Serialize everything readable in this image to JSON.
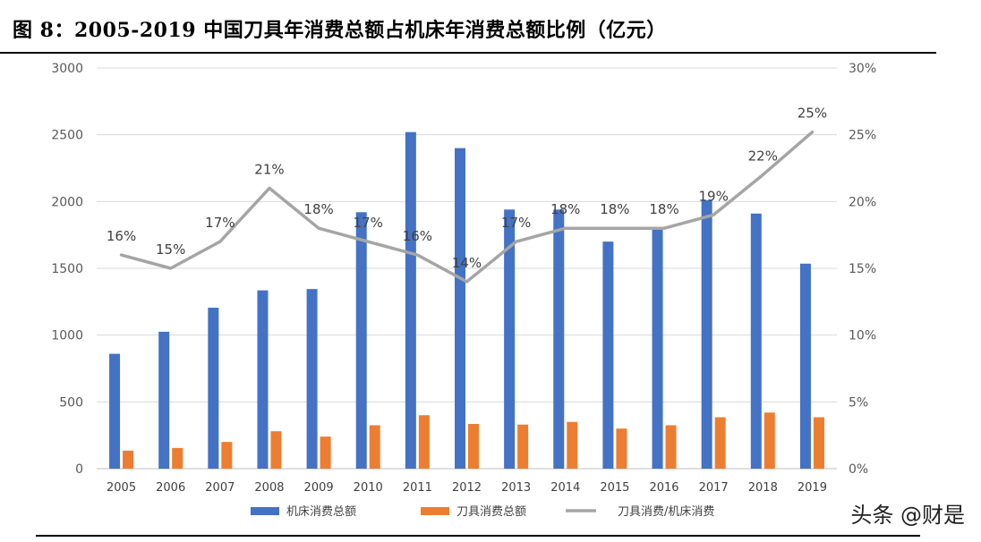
{
  "title": "图  8：2005-2019 中国刀具年消费总额占机床年消费总额比例（亿元）",
  "watermark": "头条 @财是",
  "chart_data": {
    "type": "bar",
    "categories": [
      "2005",
      "2006",
      "2007",
      "2008",
      "2009",
      "2010",
      "2011",
      "2012",
      "2013",
      "2014",
      "2015",
      "2016",
      "2017",
      "2018",
      "2019"
    ],
    "y_left_ticks": [
      "0",
      "500",
      "1000",
      "1500",
      "2000",
      "2500",
      "3000"
    ],
    "y_right_ticks": [
      "0%",
      "5%",
      "10%",
      "15%",
      "20%",
      "25%",
      "30%"
    ],
    "ylim_left": [
      0,
      3000
    ],
    "ylim_right": [
      0,
      30
    ],
    "series": [
      {
        "name": "机床消费总额",
        "type": "bar",
        "axis": "left",
        "color": "#4472C4",
        "values": [
          860,
          1025,
          1205,
          1335,
          1345,
          1920,
          2520,
          2400,
          1940,
          1940,
          1700,
          1800,
          2010,
          1910,
          1535
        ]
      },
      {
        "name": "刀具消费总额",
        "type": "bar",
        "axis": "left",
        "color": "#ED7D31",
        "values": [
          135,
          155,
          200,
          280,
          240,
          325,
          400,
          335,
          330,
          350,
          300,
          325,
          385,
          420,
          385
        ]
      },
      {
        "name": "刀具消费/机床消费",
        "type": "line",
        "axis": "right",
        "color": "#A5A5A5",
        "values": [
          16,
          15,
          17,
          21,
          18,
          17,
          16,
          14,
          17,
          18,
          18,
          18,
          19,
          22,
          25.2
        ],
        "labels": [
          "16%",
          "15%",
          "17%",
          "21%",
          "18%",
          "17%",
          "16%",
          "14%",
          "17%",
          "18%",
          "18%",
          "18%",
          "19%",
          "22%",
          "25%"
        ]
      }
    ],
    "grid": true,
    "legend_position": "bottom"
  }
}
